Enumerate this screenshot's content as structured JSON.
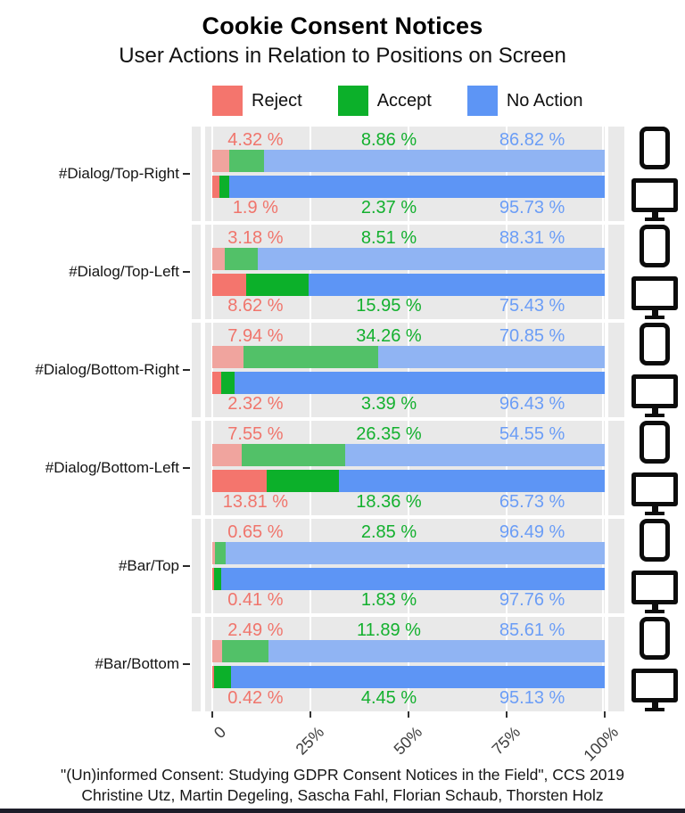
{
  "header": {
    "title": "Cookie Consent Notices",
    "subtitle": "User Actions in Relation to Positions on Screen"
  },
  "legend": [
    {
      "label": "Reject",
      "color": "#F4756D"
    },
    {
      "label": "Accept",
      "color": "#0CB02A"
    },
    {
      "label": "No Action",
      "color": "#5D95F5"
    }
  ],
  "chart_data": {
    "type": "bar",
    "orientation": "horizontal",
    "stacked": true,
    "unit": "%",
    "xlim": [
      0,
      100
    ],
    "x_ticks": [
      "0",
      "25%",
      "50%",
      "75%",
      "100%"
    ],
    "grid": true,
    "legend_position": "top",
    "series_colors": {
      "desktop": {
        "reject": "#F4756D",
        "accept": "#0CB02A",
        "no_action": "#5D95F5"
      },
      "mobile": {
        "reject": "#F0A49E",
        "accept": "#52C168",
        "no_action": "#90B4F3"
      }
    },
    "device_icons": [
      "mobile-phone-icon",
      "desktop-monitor-icon"
    ],
    "groups": [
      {
        "label": "#Dialog/Top-Right",
        "mobile": {
          "reject": 4.32,
          "accept": 8.86,
          "no_action": 86.82,
          "labels": [
            "4.32 %",
            "8.86 %",
            "86.82 %"
          ]
        },
        "desktop": {
          "reject": 1.9,
          "accept": 2.37,
          "no_action": 95.73,
          "labels": [
            "1.9 %",
            "2.37 %",
            "95.73 %"
          ]
        }
      },
      {
        "label": "#Dialog/Top-Left",
        "mobile": {
          "reject": 3.18,
          "accept": 8.51,
          "no_action": 88.31,
          "labels": [
            "3.18 %",
            "8.51 %",
            "88.31 %"
          ]
        },
        "desktop": {
          "reject": 8.62,
          "accept": 15.95,
          "no_action": 75.43,
          "labels": [
            "8.62 %",
            "15.95 %",
            "75.43 %"
          ]
        }
      },
      {
        "label": "#Dialog/Bottom-Right",
        "mobile": {
          "reject": 7.94,
          "accept": 34.26,
          "no_action": 70.85,
          "labels": [
            "7.94 %",
            "34.26 %",
            "70.85 %"
          ]
        },
        "desktop": {
          "reject": 2.32,
          "accept": 3.39,
          "no_action": 96.43,
          "labels": [
            "2.32 %",
            "3.39 %",
            "96.43 %"
          ]
        }
      },
      {
        "label": "#Dialog/Bottom-Left",
        "mobile": {
          "reject": 7.55,
          "accept": 26.35,
          "no_action": 54.55,
          "labels": [
            "7.55 %",
            "26.35 %",
            "54.55 %"
          ]
        },
        "desktop": {
          "reject": 13.81,
          "accept": 18.36,
          "no_action": 65.73,
          "labels": [
            "13.81 %",
            "18.36 %",
            "65.73 %"
          ]
        }
      },
      {
        "label": "#Bar/Top",
        "mobile": {
          "reject": 0.65,
          "accept": 2.85,
          "no_action": 96.49,
          "labels": [
            "0.65 %",
            "2.85 %",
            "96.49 %"
          ]
        },
        "desktop": {
          "reject": 0.41,
          "accept": 1.83,
          "no_action": 97.76,
          "labels": [
            "0.41 %",
            "1.83 %",
            "97.76 %"
          ]
        }
      },
      {
        "label": "#Bar/Bottom",
        "mobile": {
          "reject": 2.49,
          "accept": 11.89,
          "no_action": 85.61,
          "labels": [
            "2.49 %",
            "11.89 %",
            "85.61 %"
          ]
        },
        "desktop": {
          "reject": 0.42,
          "accept": 4.45,
          "no_action": 95.13,
          "labels": [
            "0.42 %",
            "4.45 %",
            "95.13 %"
          ]
        }
      }
    ]
  },
  "caption": {
    "line1": "\"(Un)informed Consent: Studying GDPR Consent Notices in the Field\", CCS 2019",
    "line2": "Christine Utz, Martin Degeling, Sascha Fahl, Florian Schaub, Thorsten Holz"
  }
}
